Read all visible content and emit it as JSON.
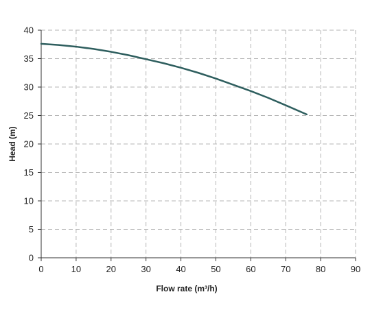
{
  "chart_data": {
    "type": "line",
    "title": "",
    "xlabel": "Flow rate (m³/h)",
    "ylabel": "Head (m)",
    "xlim": [
      0,
      90
    ],
    "ylim": [
      0,
      40
    ],
    "x_ticks": [
      0,
      10,
      20,
      30,
      40,
      50,
      60,
      70,
      80,
      90
    ],
    "y_ticks": [
      0,
      5,
      10,
      15,
      20,
      25,
      30,
      35,
      40
    ],
    "grid": true,
    "grid_style": "dashed",
    "legend": "none",
    "series": [
      {
        "color": "#2e5e5e",
        "x": [
          0,
          5,
          10,
          15,
          20,
          25,
          30,
          35,
          40,
          45,
          50,
          55,
          60,
          65,
          70,
          76
        ],
        "y": [
          37.6,
          37.4,
          37.1,
          36.7,
          36.2,
          35.6,
          34.9,
          34.2,
          33.4,
          32.5,
          31.5,
          30.4,
          29.3,
          28.1,
          26.8,
          25.2
        ]
      }
    ]
  }
}
